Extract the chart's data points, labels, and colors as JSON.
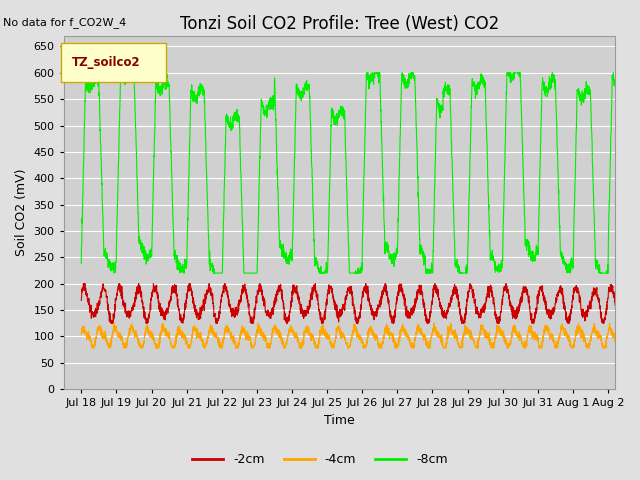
{
  "title": "Tonzi Soil CO2 Profile: Tree (West) CO2",
  "no_data_label": "No data for f_CO2W_4",
  "ylabel": "Soil CO2 (mV)",
  "xlabel": "Time",
  "legend_title": "TZ_soilco2",
  "legend_entries": [
    "-2cm",
    "-4cm",
    "-8cm"
  ],
  "line_colors": [
    "#cc0000",
    "#ffa500",
    "#00ee00"
  ],
  "ylim": [
    0,
    670
  ],
  "yticks": [
    0,
    50,
    100,
    150,
    200,
    250,
    300,
    350,
    400,
    450,
    500,
    550,
    600,
    650
  ],
  "xlim_days": [
    17.5,
    33.2
  ],
  "xtick_labels": [
    "Jul 18",
    "Jul 19",
    "Jul 20",
    "Jul 21",
    "Jul 22",
    "Jul 23",
    "Jul 24",
    "Jul 25",
    "Jul 26",
    "Jul 27",
    "Jul 28",
    "Jul 29",
    "Jul 30",
    "Jul 31",
    "Aug 1",
    "Aug 2"
  ],
  "xtick_positions": [
    18,
    19,
    20,
    21,
    22,
    23,
    24,
    25,
    26,
    27,
    28,
    29,
    30,
    31,
    32,
    33
  ],
  "bg_color": "#e0e0e0",
  "plot_bg_color": "#d0d0d0",
  "grid_color": "#ffffff",
  "title_fontsize": 12,
  "label_fontsize": 9,
  "tick_fontsize": 8
}
